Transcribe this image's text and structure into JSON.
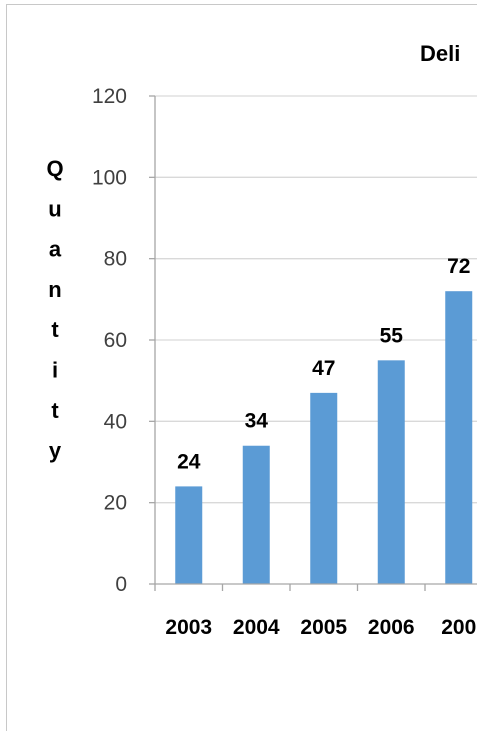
{
  "chart_data": {
    "type": "bar",
    "title": "Deli",
    "ylabel": "Quantity",
    "xlabel": "",
    "categories": [
      "2003",
      "2004",
      "2005",
      "2006",
      "200"
    ],
    "values": [
      24,
      34,
      47,
      55,
      72
    ],
    "data_labels": [
      "24",
      "34",
      "47",
      "55",
      "72"
    ],
    "ylim": [
      0,
      120
    ],
    "yticks": [
      "0",
      "20",
      "40",
      "60",
      "80",
      "100",
      "120"
    ],
    "grid": true,
    "bar_color": "#5b9bd5",
    "grid_color": "#d9d9d9"
  }
}
